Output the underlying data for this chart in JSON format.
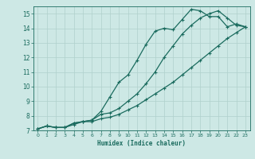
{
  "xlabel": "Humidex (Indice chaleur)",
  "xlim": [
    -0.5,
    23.5
  ],
  "ylim": [
    7,
    15.5
  ],
  "xticks": [
    0,
    1,
    2,
    3,
    4,
    5,
    6,
    7,
    8,
    9,
    10,
    11,
    12,
    13,
    14,
    15,
    16,
    17,
    18,
    19,
    20,
    21,
    22,
    23
  ],
  "yticks": [
    7,
    8,
    9,
    10,
    11,
    12,
    13,
    14,
    15
  ],
  "bg_color": "#cde8e5",
  "line_color": "#1a6b5e",
  "grid_color": "#b0d0cc",
  "curve1_x": [
    0,
    1,
    2,
    3,
    4,
    5,
    6,
    7,
    8,
    9,
    10,
    11,
    12,
    13,
    14,
    15,
    16,
    17,
    18,
    19,
    20,
    21,
    22,
    23
  ],
  "curve1_y": [
    7.1,
    7.3,
    7.2,
    7.2,
    7.4,
    7.6,
    7.6,
    7.8,
    7.9,
    8.1,
    8.4,
    8.7,
    9.1,
    9.5,
    9.9,
    10.3,
    10.8,
    11.3,
    11.8,
    12.3,
    12.8,
    13.3,
    13.7,
    14.1
  ],
  "curve2_x": [
    0,
    1,
    2,
    3,
    4,
    5,
    6,
    7,
    8,
    9,
    10,
    11,
    12,
    13,
    14,
    15,
    16,
    17,
    18,
    19,
    20,
    21,
    22,
    23
  ],
  "curve2_y": [
    7.1,
    7.3,
    7.2,
    7.2,
    7.5,
    7.6,
    7.7,
    8.1,
    8.2,
    8.5,
    9.0,
    9.5,
    10.2,
    11.0,
    12.0,
    12.8,
    13.6,
    14.2,
    14.7,
    15.0,
    15.2,
    14.7,
    14.2,
    14.1
  ],
  "curve3_x": [
    0,
    1,
    2,
    3,
    4,
    5,
    6,
    7,
    8,
    9,
    10,
    11,
    12,
    13,
    14,
    15,
    16,
    17,
    18,
    19,
    20,
    21,
    22,
    23
  ],
  "curve3_y": [
    7.1,
    7.3,
    7.2,
    7.2,
    7.5,
    7.6,
    7.7,
    8.3,
    9.3,
    10.3,
    10.8,
    11.8,
    12.9,
    13.8,
    14.0,
    13.9,
    14.6,
    15.3,
    15.2,
    14.8,
    14.8,
    14.1,
    14.3,
    14.1
  ]
}
